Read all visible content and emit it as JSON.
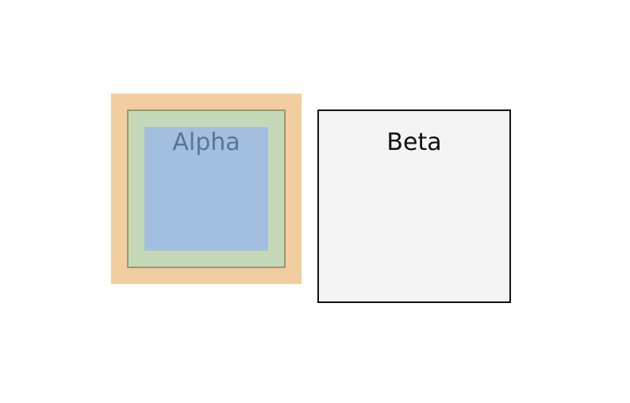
{
  "boxes": {
    "alpha": {
      "label": "Alpha",
      "colors": {
        "margin": "#f2cda0",
        "border_fill": "#c5d9b8",
        "border_line": "#9a9a6e",
        "content": "#a3bfe0",
        "text": "#5b7593"
      }
    },
    "beta": {
      "label": "Beta",
      "colors": {
        "fill": "#f4f4f4",
        "border": "#111111",
        "text": "#111111"
      }
    }
  }
}
